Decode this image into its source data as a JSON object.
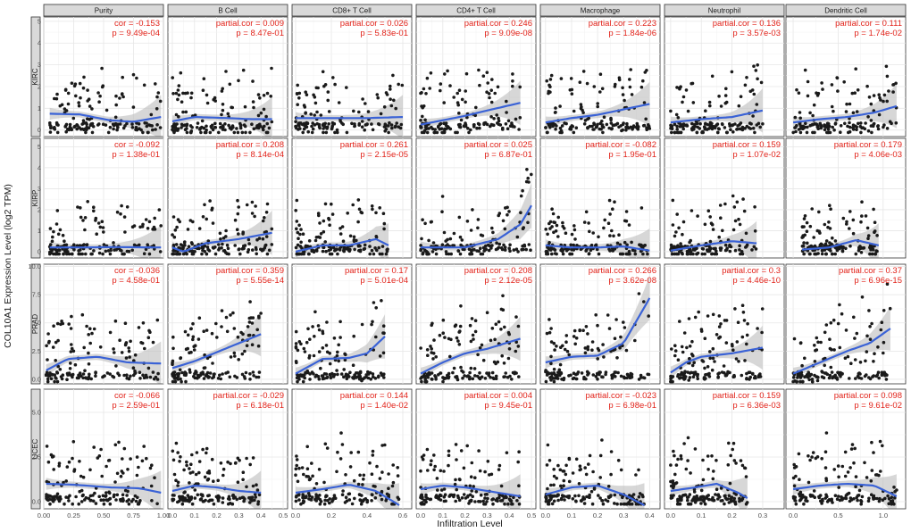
{
  "chart_data": {
    "type": "scatter",
    "title": "",
    "xlabel": "Infiltration Level",
    "ylabel": "COL10A1 Expression Level (log2 TPM)",
    "columns": [
      {
        "name": "Purity",
        "xlim": [
          0,
          1.0
        ],
        "xticks": [
          "0.00",
          "0.25",
          "0.50",
          "0.75",
          "1.00"
        ],
        "xtick_values": [
          0,
          0.25,
          0.5,
          0.75,
          1.0
        ]
      },
      {
        "name": "B Cell",
        "xlim": [
          -0.02,
          0.52
        ],
        "xticks": [
          "0.0",
          "0.1",
          "0.2",
          "0.3",
          "0.4",
          "0.5"
        ],
        "xtick_values": [
          0,
          0.1,
          0.2,
          0.3,
          0.4,
          0.5
        ]
      },
      {
        "name": "CD8+ T Cell",
        "xlim": [
          -0.02,
          0.65
        ],
        "xticks": [
          "0.0",
          "0.2",
          "0.4",
          "0.6"
        ],
        "xtick_values": [
          0,
          0.2,
          0.4,
          0.6
        ]
      },
      {
        "name": "CD4+ T Cell",
        "xlim": [
          -0.02,
          0.52
        ],
        "xticks": [
          "0.0",
          "0.1",
          "0.2",
          "0.3",
          "0.4",
          "0.5"
        ],
        "xtick_values": [
          0,
          0.1,
          0.2,
          0.3,
          0.4,
          0.5
        ]
      },
      {
        "name": "Macrophage",
        "xlim": [
          -0.02,
          0.44
        ],
        "xticks": [
          "0.0",
          "0.1",
          "0.2",
          "0.3",
          "0.4"
        ],
        "xtick_values": [
          0,
          0.1,
          0.2,
          0.3,
          0.4
        ]
      },
      {
        "name": "Neutrophil",
        "xlim": [
          -0.02,
          0.37
        ],
        "xticks": [
          "0.0",
          "0.1",
          "0.2",
          "0.3"
        ],
        "xtick_values": [
          0,
          0.1,
          0.2,
          0.3
        ]
      },
      {
        "name": "Dendritic Cell",
        "xlim": [
          -0.08,
          1.25
        ],
        "xticks": [
          "0.0",
          "0.5",
          "1.0"
        ],
        "xtick_values": [
          0,
          0.5,
          1.0
        ]
      }
    ],
    "rows": [
      {
        "name": "KIRC",
        "ylim": [
          -0.3,
          5.2
        ],
        "yticks": [
          "0",
          "1",
          "2",
          "3",
          "4",
          "5"
        ],
        "ytick_values": [
          0,
          1,
          2,
          3,
          4,
          5
        ]
      },
      {
        "name": "KIRP",
        "ylim": [
          -0.3,
          5.4
        ],
        "yticks": [
          "0",
          "1",
          "2",
          "3",
          "4",
          "5"
        ],
        "ytick_values": [
          0,
          1,
          2,
          3,
          4,
          5
        ]
      },
      {
        "name": "PRAD",
        "ylim": [
          -0.4,
          10.2
        ],
        "yticks": [
          "0.0",
          "2.5",
          "5.0",
          "7.5",
          "10.0"
        ],
        "ytick_values": [
          0,
          2.5,
          5,
          7.5,
          10
        ]
      },
      {
        "name": "UCEC",
        "ylim": [
          -0.4,
          6.3
        ],
        "yticks": [
          "0.0",
          "2.5",
          "5.0"
        ],
        "ytick_values": [
          0,
          2.5,
          5
        ]
      }
    ],
    "stats": [
      [
        {
          "r": "cor = -0.153",
          "p": "p = 9.49e-04"
        },
        {
          "r": "partial.cor = 0.009",
          "p": "p = 8.47e-01"
        },
        {
          "r": "partial.cor = 0.026",
          "p": "p = 5.83e-01"
        },
        {
          "r": "partial.cor = 0.246",
          "p": "p = 9.09e-08"
        },
        {
          "r": "partial.cor = 0.223",
          "p": "p = 1.84e-06"
        },
        {
          "r": "partial.cor = 0.136",
          "p": "p = 3.57e-03"
        },
        {
          "r": "partial.cor = 0.111",
          "p": "p = 1.74e-02"
        }
      ],
      [
        {
          "r": "cor = -0.092",
          "p": "p = 1.38e-01"
        },
        {
          "r": "partial.cor = 0.208",
          "p": "p = 8.14e-04"
        },
        {
          "r": "partial.cor = 0.261",
          "p": "p = 2.15e-05"
        },
        {
          "r": "partial.cor = 0.025",
          "p": "p = 6.87e-01"
        },
        {
          "r": "partial.cor = -0.082",
          "p": "p = 1.95e-01"
        },
        {
          "r": "partial.cor = 0.159",
          "p": "p = 1.07e-02"
        },
        {
          "r": "partial.cor = 0.179",
          "p": "p = 4.06e-03"
        }
      ],
      [
        {
          "r": "cor = -0.036",
          "p": "p = 4.58e-01"
        },
        {
          "r": "partial.cor = 0.359",
          "p": "p = 5.55e-14"
        },
        {
          "r": "partial.cor = 0.17",
          "p": "p = 5.01e-04"
        },
        {
          "r": "partial.cor = 0.208",
          "p": "p = 2.12e-05"
        },
        {
          "r": "partial.cor = 0.266",
          "p": "p = 3.62e-08"
        },
        {
          "r": "partial.cor = 0.3",
          "p": "p = 4.46e-10"
        },
        {
          "r": "partial.cor = 0.37",
          "p": "p = 6.96e-15"
        }
      ],
      [
        {
          "r": "cor = -0.066",
          "p": "p = 2.59e-01"
        },
        {
          "r": "partial.cor = -0.029",
          "p": "p = 6.18e-01"
        },
        {
          "r": "partial.cor = 0.144",
          "p": "p = 1.40e-02"
        },
        {
          "r": "partial.cor = 0.004",
          "p": "p = 9.45e-01"
        },
        {
          "r": "partial.cor = -0.023",
          "p": "p = 6.98e-01"
        },
        {
          "r": "partial.cor = 0.159",
          "p": "p = 6.36e-03"
        },
        {
          "r": "partial.cor = 0.098",
          "p": "p = 9.61e-02"
        }
      ]
    ],
    "trend_curves": [
      [
        [
          [
            0.05,
            0.75
          ],
          [
            0.3,
            0.72
          ],
          [
            0.55,
            0.45
          ],
          [
            0.75,
            0.38
          ],
          [
            0.98,
            0.6
          ]
        ],
        [
          [
            0.0,
            0.4
          ],
          [
            0.1,
            0.6
          ],
          [
            0.25,
            0.55
          ],
          [
            0.35,
            0.5
          ],
          [
            0.45,
            0.5
          ]
        ],
        [
          [
            0.0,
            0.55
          ],
          [
            0.2,
            0.55
          ],
          [
            0.4,
            0.55
          ],
          [
            0.6,
            0.6
          ]
        ],
        [
          [
            0.0,
            0.25
          ],
          [
            0.1,
            0.45
          ],
          [
            0.2,
            0.65
          ],
          [
            0.3,
            0.9
          ],
          [
            0.45,
            1.25
          ]
        ],
        [
          [
            0.0,
            0.35
          ],
          [
            0.1,
            0.55
          ],
          [
            0.2,
            0.7
          ],
          [
            0.3,
            0.95
          ],
          [
            0.4,
            1.2
          ]
        ],
        [
          [
            0.0,
            0.35
          ],
          [
            0.1,
            0.5
          ],
          [
            0.2,
            0.6
          ],
          [
            0.3,
            0.9
          ]
        ],
        [
          [
            0.0,
            0.35
          ],
          [
            0.3,
            0.5
          ],
          [
            0.6,
            0.6
          ],
          [
            0.9,
            0.8
          ],
          [
            1.15,
            1.1
          ]
        ]
      ],
      [
        [
          [
            0.05,
            0.2
          ],
          [
            0.3,
            0.2
          ],
          [
            0.6,
            0.22
          ],
          [
            0.98,
            0.2
          ]
        ],
        [
          [
            0.0,
            0.2
          ],
          [
            0.05,
            0.0
          ],
          [
            0.15,
            0.4
          ],
          [
            0.3,
            0.6
          ],
          [
            0.45,
            0.9
          ]
        ],
        [
          [
            0.0,
            0.0
          ],
          [
            0.15,
            0.3
          ],
          [
            0.3,
            0.3
          ],
          [
            0.45,
            0.6
          ],
          [
            0.52,
            0.3
          ]
        ],
        [
          [
            0.0,
            0.2
          ],
          [
            0.2,
            0.2
          ],
          [
            0.35,
            0.6
          ],
          [
            0.45,
            1.3
          ],
          [
            0.5,
            2.2
          ]
        ],
        [
          [
            0.0,
            0.3
          ],
          [
            0.1,
            0.2
          ],
          [
            0.2,
            0.2
          ],
          [
            0.3,
            0.25
          ],
          [
            0.4,
            0.05
          ]
        ],
        [
          [
            0.0,
            0.05
          ],
          [
            0.1,
            0.3
          ],
          [
            0.2,
            0.5
          ],
          [
            0.28,
            0.4
          ]
        ],
        [
          [
            0.1,
            0.1
          ],
          [
            0.4,
            0.2
          ],
          [
            0.7,
            0.55
          ],
          [
            0.95,
            0.3
          ]
        ]
      ],
      [
        [
          [
            0.02,
            0.8
          ],
          [
            0.2,
            1.8
          ],
          [
            0.45,
            2.0
          ],
          [
            0.7,
            1.5
          ],
          [
            0.98,
            1.4
          ]
        ],
        [
          [
            0.0,
            1.0
          ],
          [
            0.1,
            1.6
          ],
          [
            0.2,
            2.4
          ],
          [
            0.3,
            3.2
          ],
          [
            0.4,
            4.0
          ]
        ],
        [
          [
            0.0,
            0.5
          ],
          [
            0.15,
            1.8
          ],
          [
            0.3,
            1.9
          ],
          [
            0.4,
            2.3
          ],
          [
            0.5,
            3.8
          ]
        ],
        [
          [
            0.0,
            0.5
          ],
          [
            0.1,
            1.5
          ],
          [
            0.2,
            2.3
          ],
          [
            0.3,
            2.7
          ],
          [
            0.45,
            3.6
          ]
        ],
        [
          [
            0.0,
            1.5
          ],
          [
            0.1,
            2.0
          ],
          [
            0.2,
            2.1
          ],
          [
            0.3,
            3.2
          ],
          [
            0.4,
            7.2
          ]
        ],
        [
          [
            0.0,
            0.6
          ],
          [
            0.05,
            1.5
          ],
          [
            0.1,
            2.0
          ],
          [
            0.2,
            2.3
          ],
          [
            0.3,
            2.8
          ]
        ],
        [
          [
            0.0,
            0.5
          ],
          [
            0.3,
            1.5
          ],
          [
            0.6,
            2.5
          ],
          [
            0.85,
            3.2
          ],
          [
            1.08,
            4.5
          ]
        ]
      ],
      [
        [
          [
            0.02,
            1.0
          ],
          [
            0.25,
            0.95
          ],
          [
            0.55,
            0.8
          ],
          [
            0.8,
            0.75
          ],
          [
            0.98,
            0.5
          ]
        ],
        [
          [
            0.0,
            0.6
          ],
          [
            0.1,
            0.9
          ],
          [
            0.2,
            0.8
          ],
          [
            0.3,
            0.6
          ],
          [
            0.4,
            0.5
          ]
        ],
        [
          [
            0.0,
            0.5
          ],
          [
            0.15,
            0.7
          ],
          [
            0.3,
            0.95
          ],
          [
            0.45,
            0.6
          ],
          [
            0.58,
            -0.2
          ]
        ],
        [
          [
            0.0,
            0.7
          ],
          [
            0.1,
            0.9
          ],
          [
            0.2,
            0.8
          ],
          [
            0.3,
            0.6
          ],
          [
            0.45,
            0.3
          ]
        ],
        [
          [
            0.0,
            0.4
          ],
          [
            0.1,
            0.8
          ],
          [
            0.2,
            0.9
          ],
          [
            0.3,
            0.4
          ],
          [
            0.38,
            -0.2
          ]
        ],
        [
          [
            0.0,
            0.6
          ],
          [
            0.08,
            0.8
          ],
          [
            0.15,
            1.0
          ],
          [
            0.22,
            0.5
          ],
          [
            0.25,
            0.2
          ]
        ],
        [
          [
            0.0,
            0.7
          ],
          [
            0.3,
            0.9
          ],
          [
            0.6,
            1.0
          ],
          [
            0.9,
            0.9
          ],
          [
            1.15,
            0.3
          ]
        ]
      ]
    ],
    "point_data_note": "Dense clouds of roughly 300–500 samples per panel; individual values are not labeled, so only the fitted trends and the printed statistics are recoverable."
  }
}
